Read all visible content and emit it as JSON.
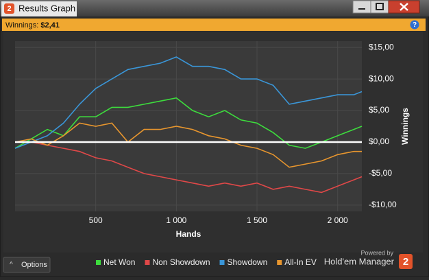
{
  "window": {
    "icon_label": "2",
    "title": "Results Graph"
  },
  "header": {
    "label": "Winnings:",
    "value": "$2,41",
    "help": "?"
  },
  "chart_data": {
    "type": "line",
    "x_label": "Hands",
    "y_label": "Winnings",
    "x": [
      0,
      100,
      200,
      300,
      400,
      500,
      600,
      700,
      800,
      900,
      1000,
      1100,
      1200,
      1300,
      1400,
      1500,
      1600,
      1700,
      1800,
      1900,
      2000,
      2100,
      2150
    ],
    "series": [
      {
        "name": "Net Won",
        "color": "#3ddc3d",
        "values": [
          -1,
          0.5,
          2,
          1,
          4,
          4,
          5.5,
          5.5,
          6,
          6.5,
          7,
          5,
          4,
          5,
          3.5,
          3,
          1.5,
          -0.5,
          -1,
          0,
          1,
          2,
          2.5
        ]
      },
      {
        "name": "Non Showdown",
        "color": "#e04848",
        "values": [
          0,
          0,
          -0.5,
          -1,
          -1.5,
          -2.5,
          -3,
          -4,
          -5,
          -5.5,
          -6,
          -6.5,
          -7,
          -6.5,
          -7,
          -6.5,
          -7.5,
          -7,
          -7.5,
          -8,
          -7,
          -6,
          -5.5
        ]
      },
      {
        "name": "Showdown",
        "color": "#3a96d8",
        "values": [
          -1,
          0,
          1,
          3,
          6,
          8.5,
          10,
          11.5,
          12,
          12.5,
          13.5,
          12,
          12,
          11.5,
          10,
          10,
          9,
          6,
          6.5,
          7,
          7.5,
          7.5,
          8
        ]
      },
      {
        "name": "All-In EV",
        "color": "#e8962e",
        "values": [
          0,
          0.5,
          -0.5,
          1,
          3,
          2.5,
          3,
          0,
          2,
          2,
          2.5,
          2,
          1,
          0.5,
          -0.5,
          -1,
          -2,
          -4,
          -3.5,
          -3,
          -2,
          -1.5,
          -1.5
        ]
      }
    ],
    "xlim": [
      0,
      2150
    ],
    "ylim": [
      -11,
      16
    ],
    "xticks": [
      500,
      {
        "value": 1000,
        "label": "1 000"
      },
      {
        "value": 1500,
        "label": "1 500"
      },
      {
        "value": 2000,
        "label": "2 000"
      }
    ],
    "yticks": [
      {
        "value": 15,
        "label": "$15,00"
      },
      {
        "value": 10,
        "label": "$10,00"
      },
      {
        "value": 5,
        "label": "$5,00"
      },
      {
        "value": 0,
        "label": "$0,00"
      },
      {
        "value": -5,
        "label": "-$5,00"
      },
      {
        "value": -10,
        "label": "-$10,00"
      }
    ],
    "grid": true,
    "zero_line": true,
    "legend": "bottom"
  },
  "footer": {
    "options": "Options",
    "powered_by": "Powered by",
    "brand": "Hold'em Manager",
    "brand_icon": "2"
  }
}
